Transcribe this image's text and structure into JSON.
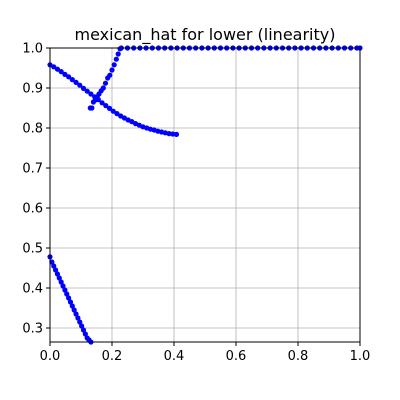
{
  "chart_data": {
    "type": "scatter",
    "title": "mexican_hat for lower (linearity)",
    "xlabel": "",
    "ylabel": "",
    "xlim": [
      0.0,
      1.0
    ],
    "ylim": [
      0.265,
      1.0
    ],
    "x_ticks": [
      "0.0",
      "0.2",
      "0.4",
      "0.6",
      "0.8",
      "1.0"
    ],
    "x_tick_values": [
      0.0,
      0.2,
      0.4,
      0.6,
      0.8,
      1.0
    ],
    "y_ticks": [
      "0.3",
      "0.4",
      "0.5",
      "0.6",
      "0.7",
      "0.8",
      "0.9",
      "1.0"
    ],
    "y_tick_values": [
      0.3,
      0.4,
      0.5,
      0.6,
      0.7,
      0.8,
      0.9,
      1.0
    ],
    "grid": true,
    "marker_color": "#0000ff",
    "series": [
      {
        "x": [
          0.0,
          0.012,
          0.024,
          0.036,
          0.048,
          0.06,
          0.072,
          0.084,
          0.096,
          0.108,
          0.12,
          0.132,
          0.144,
          0.156,
          0.168,
          0.18,
          0.192,
          0.204,
          0.216,
          0.228,
          0.24,
          0.252,
          0.264,
          0.276,
          0.288,
          0.3,
          0.312,
          0.324,
          0.336,
          0.348,
          0.36,
          0.372,
          0.384,
          0.396,
          0.408
        ],
        "y": [
          0.958,
          0.953,
          0.947,
          0.941,
          0.934,
          0.928,
          0.921,
          0.914,
          0.907,
          0.899,
          0.892,
          0.885,
          0.878,
          0.871,
          0.863,
          0.856,
          0.849,
          0.842,
          0.836,
          0.83,
          0.825,
          0.82,
          0.816,
          0.811,
          0.807,
          0.803,
          0.8,
          0.797,
          0.795,
          0.792,
          0.79,
          0.788,
          0.786,
          0.785,
          0.784
        ]
      },
      {
        "x": [
          0.13,
          0.135,
          0.14,
          0.146,
          0.152,
          0.158,
          0.165,
          0.172,
          0.179,
          0.186,
          0.193,
          0.2,
          0.207,
          0.214,
          0.22,
          0.226
        ],
        "y": [
          0.85,
          0.85,
          0.865,
          0.87,
          0.878,
          0.885,
          0.893,
          0.9,
          0.912,
          0.925,
          0.932,
          0.945,
          0.958,
          0.972,
          0.985,
          0.998
        ]
      },
      {
        "x": [
          0.0,
          0.006,
          0.012,
          0.018,
          0.024,
          0.03,
          0.036,
          0.042,
          0.048,
          0.054,
          0.06,
          0.066,
          0.072,
          0.078,
          0.084,
          0.09,
          0.096,
          0.102,
          0.108,
          0.114,
          0.12,
          0.126,
          0.132
        ],
        "y": [
          0.478,
          0.465,
          0.455,
          0.445,
          0.435,
          0.425,
          0.415,
          0.405,
          0.395,
          0.385,
          0.375,
          0.365,
          0.355,
          0.345,
          0.335,
          0.325,
          0.315,
          0.305,
          0.295,
          0.285,
          0.275,
          0.27,
          0.265
        ]
      },
      {
        "x": [
          0.23,
          0.25,
          0.27,
          0.29,
          0.31,
          0.33,
          0.35,
          0.37,
          0.39,
          0.41,
          0.43,
          0.45,
          0.47,
          0.49,
          0.51,
          0.53,
          0.55,
          0.57,
          0.59,
          0.61,
          0.63,
          0.65,
          0.67,
          0.69,
          0.71,
          0.73,
          0.75,
          0.77,
          0.79,
          0.81,
          0.83,
          0.85,
          0.87,
          0.89,
          0.91,
          0.93,
          0.95,
          0.97,
          0.99,
          1.0
        ],
        "y": [
          1.0,
          1.0,
          1.0,
          1.0,
          1.0,
          1.0,
          1.0,
          1.0,
          1.0,
          1.0,
          1.0,
          1.0,
          1.0,
          1.0,
          1.0,
          1.0,
          1.0,
          1.0,
          1.0,
          1.0,
          1.0,
          1.0,
          1.0,
          1.0,
          1.0,
          1.0,
          1.0,
          1.0,
          1.0,
          1.0,
          1.0,
          1.0,
          1.0,
          1.0,
          1.0,
          1.0,
          1.0,
          1.0,
          1.0,
          1.0
        ]
      }
    ]
  }
}
